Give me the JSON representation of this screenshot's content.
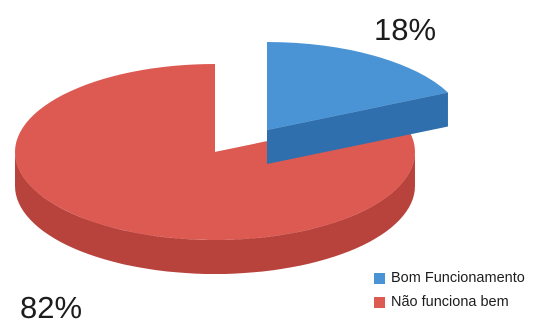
{
  "chart_data": {
    "type": "pie",
    "title": "",
    "three_d": true,
    "exploded_slice": "Bom Funcionamento",
    "slices": [
      {
        "label": "Bom Funcionamento",
        "value": 18,
        "display": "18%",
        "color": "#4a93d4",
        "side_color": "#2f6fae"
      },
      {
        "label": "Não funciona bem",
        "value": 82,
        "display": "82%",
        "color": "#dc5a52",
        "side_color": "#b8433c"
      }
    ],
    "legend": {
      "position": "bottom-right",
      "entries": [
        "Bom Funcionamento",
        "Não funciona bem"
      ]
    }
  }
}
